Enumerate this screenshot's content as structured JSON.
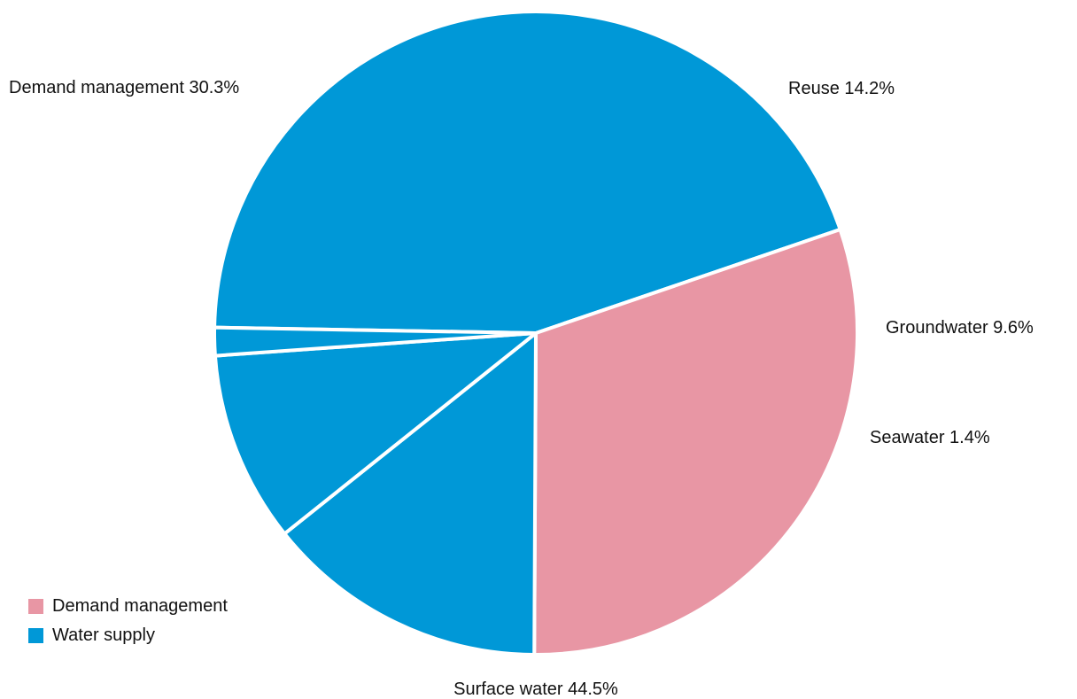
{
  "chart_data": {
    "type": "pie",
    "title": "",
    "slices": [
      {
        "label": "Surface water",
        "value": 44.5,
        "group": "Water supply"
      },
      {
        "label": "Demand management",
        "value": 30.3,
        "group": "Demand management"
      },
      {
        "label": "Reuse",
        "value": 14.2,
        "group": "Water supply"
      },
      {
        "label": "Groundwater",
        "value": 9.6,
        "group": "Water supply"
      },
      {
        "label": "Seawater",
        "value": 1.4,
        "group": "Water supply"
      }
    ],
    "slice_labels": [
      "Surface water 44.5%",
      "Demand management 30.3%",
      "Reuse 14.2%",
      "Groundwater 9.6%",
      "Seawater 1.4%"
    ],
    "legend": {
      "placement": "bottom-left",
      "items": [
        {
          "label": "Demand management",
          "color": "#E896A4"
        },
        {
          "label": "Water supply",
          "color": "#0098D7"
        }
      ]
    },
    "colors": {
      "Demand management": "#E896A4",
      "Water supply": "#0098D7",
      "separator": "#FFFFFF"
    }
  }
}
